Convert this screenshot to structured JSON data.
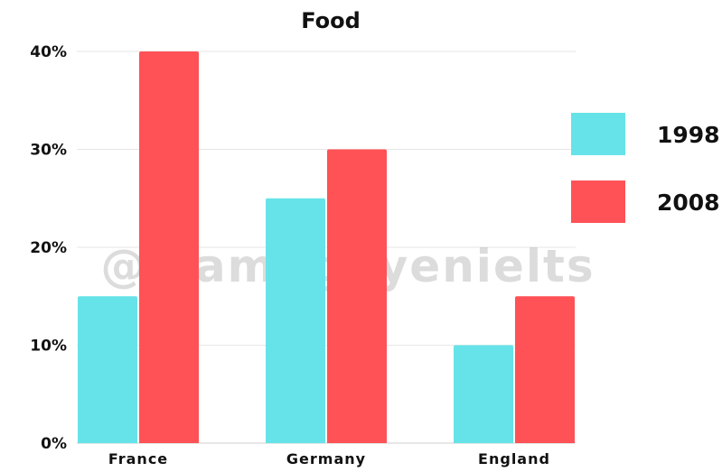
{
  "chart_data": {
    "type": "bar",
    "title": "Food",
    "xlabel": "",
    "ylabel": "",
    "categories": [
      "France",
      "Germany",
      "England"
    ],
    "series": [
      {
        "name": "1998",
        "values": [
          15,
          25,
          10
        ],
        "color": "#66E3E8"
      },
      {
        "name": "2008",
        "values": [
          40,
          30,
          15
        ],
        "color": "#FF5256"
      }
    ],
    "ylim": [
      0,
      40
    ],
    "y_ticks": [
      0,
      10,
      20,
      30,
      40
    ],
    "y_tick_labels": [
      "0%",
      "10%",
      "20%",
      "30%",
      "40%"
    ],
    "grid": true,
    "legend_position": "right"
  },
  "watermark": "@tramnguyenielts"
}
